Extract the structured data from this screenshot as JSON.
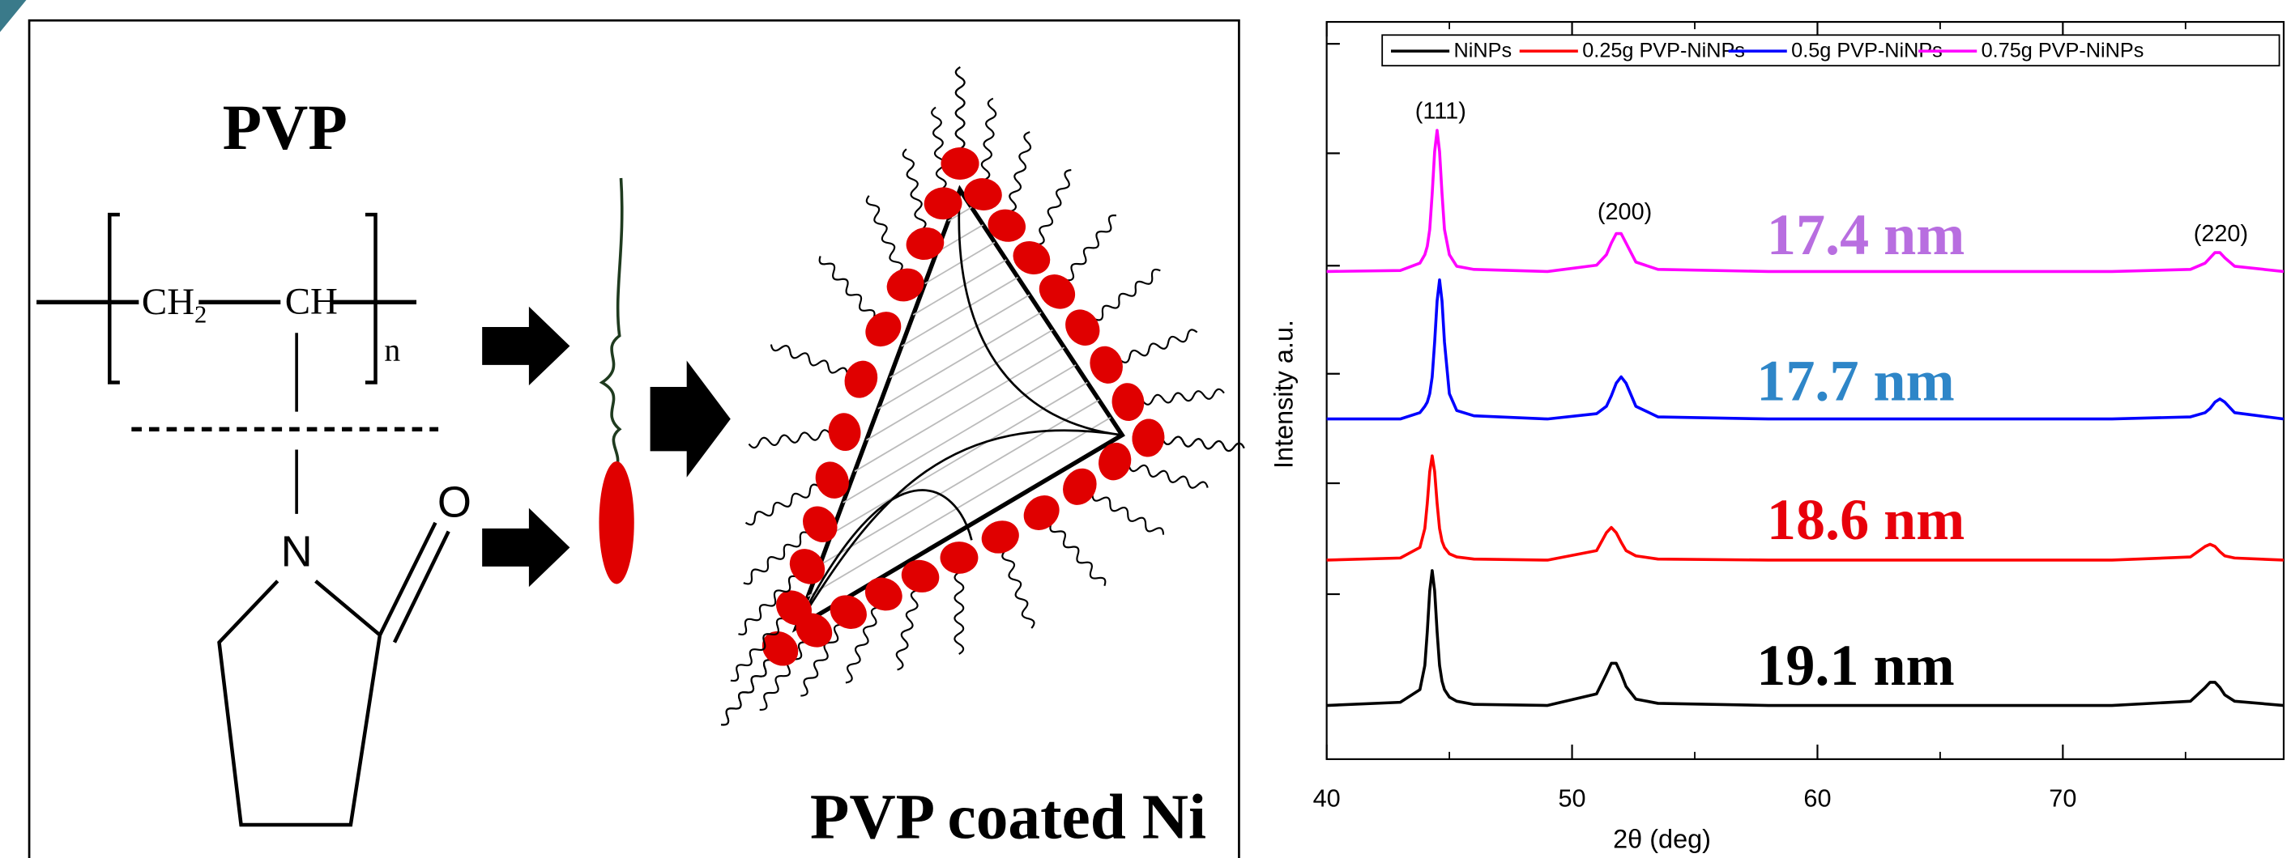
{
  "diagram": {
    "title": "PVP",
    "caption": "PVP coated Ni",
    "labels": {
      "ch2": "CH",
      "ch2_sub": "2",
      "ch": "CH",
      "n": "n",
      "nitrogen": "N",
      "oxygen": "O"
    }
  },
  "chart_data": {
    "type": "line",
    "xlabel": "2θ (deg)",
    "ylabel": "Intensity a.u.",
    "x": [
      40,
      43,
      43.8,
      44,
      44.1,
      44.2,
      44.3,
      44.4,
      44.5,
      44.6,
      44.7,
      44.8,
      45,
      45.3,
      46,
      49,
      51,
      51.4,
      51.6,
      51.8,
      52,
      52.2,
      52.6,
      53.5,
      58,
      65,
      72,
      75.2,
      75.8,
      76,
      76.2,
      76.4,
      76.6,
      77,
      79
    ],
    "xlim": [
      40,
      79
    ],
    "xticks": [
      40,
      50,
      60,
      70
    ],
    "ylim": [
      0,
      700
    ],
    "legend": "top",
    "series": [
      {
        "name": "NiNPs",
        "color": "#000000",
        "values": [
          51,
          54,
          66,
          89,
          121,
          160,
          179,
          160,
          121,
          89,
          74,
          66,
          59,
          55,
          52,
          51,
          62,
          81,
          91,
          91,
          81,
          69,
          57,
          53,
          51,
          51,
          51,
          55,
          68,
          73,
          73,
          68,
          61,
          55,
          51
        ]
      },
      {
        "name": "0.25g PVP-NiNPs",
        "color": "#ff0000",
        "values": [
          189,
          191,
          201,
          219,
          243,
          273,
          288,
          273,
          243,
          219,
          207,
          201,
          195,
          192,
          190,
          189,
          198,
          215,
          220,
          215,
          206,
          198,
          193,
          190,
          189,
          189,
          189,
          192,
          202,
          204,
          202,
          197,
          193,
          191,
          189
        ]
      },
      {
        "name": "0.5g PVP-NiNPs",
        "color": "#0000ff",
        "values": [
          323,
          323,
          329,
          335,
          339,
          347,
          363,
          396,
          435,
          455,
          435,
          396,
          347,
          331,
          326,
          323,
          328,
          335,
          345,
          357,
          363,
          357,
          335,
          325,
          323,
          323,
          323,
          325,
          329,
          333,
          339,
          342,
          339,
          329,
          323
        ]
      },
      {
        "name": "0.75g PVP-NiNPs",
        "color": "#ff00ff",
        "values": [
          463,
          464,
          471,
          479,
          487,
          503,
          537,
          577,
          597,
          577,
          537,
          503,
          479,
          468,
          465,
          463,
          469,
          479,
          490,
          499,
          499,
          490,
          472,
          465,
          463,
          463,
          463,
          465,
          471,
          476,
          481,
          481,
          476,
          468,
          463
        ]
      }
    ],
    "peak_labels": [
      "(111)",
      "(200)",
      "(220)"
    ],
    "size_labels": [
      {
        "text": "17.4 nm",
        "color": "#b86ee0"
      },
      {
        "text": "17.7 nm",
        "color": "#2e86c8"
      },
      {
        "text": "18.6 nm",
        "color": "#e8000b"
      },
      {
        "text": "19.1 nm",
        "color": "#000000"
      }
    ]
  }
}
